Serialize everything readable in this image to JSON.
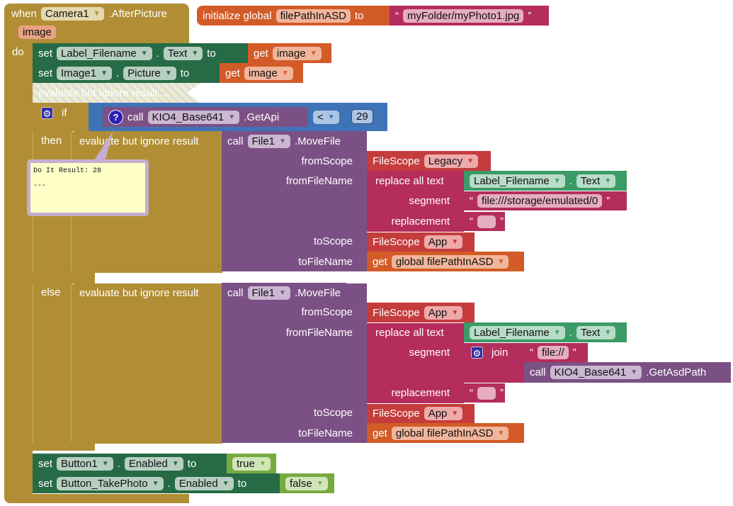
{
  "event": {
    "when": "when",
    "component": "Camera1",
    "event": ".AfterPicture",
    "param": "image",
    "do": "do"
  },
  "global": {
    "init": "initialize global",
    "name": "filePathInASD",
    "to": "to",
    "value": "myFolder/myPhoto1.jpg",
    "open_quote": "“",
    "close_quote": "”"
  },
  "set1": {
    "set": "set",
    "component": "Label_Filename",
    "dot": ".",
    "prop": "Text",
    "to": "to",
    "get": "get",
    "var": "image"
  },
  "set2": {
    "set": "set",
    "component": "Image1",
    "dot": ".",
    "prop": "Picture",
    "to": "to",
    "get": "get",
    "var": "image"
  },
  "disabled": {
    "label": "evaluate but ignore result ..."
  },
  "if": {
    "if": "if",
    "then": "then",
    "else": "else",
    "call": "call",
    "component": "KIO4_Base641",
    "method": ".GetApi",
    "op": "<",
    "number": "29"
  },
  "tooltip": {
    "line1": "Do It Result: 28",
    "line2": "---"
  },
  "then_branch": {
    "evaluate": "evaluate but ignore result",
    "call": "call",
    "component": "File1",
    "method": ".MoveFile",
    "fromScope": "fromScope",
    "fromFileName": "fromFileName",
    "toScope": "toScope",
    "toFileName": "toFileName",
    "filescope": "FileScope",
    "from_scope_value": "Legacy",
    "replace": "replace all text",
    "segment": "segment",
    "replacement": "replacement",
    "label_comp": "Label_Filename",
    "dot": ".",
    "label_prop": "Text",
    "segment_value": "file:///storage/emulated/0",
    "to_scope_value": "App",
    "get": "get",
    "global_var": "global filePathInASD"
  },
  "else_branch": {
    "evaluate": "evaluate but ignore result",
    "call": "call",
    "component": "File1",
    "method": ".MoveFile",
    "fromScope": "fromScope",
    "fromFileName": "fromFileName",
    "toScope": "toScope",
    "toFileName": "toFileName",
    "filescope": "FileScope",
    "from_scope_value": "App",
    "replace": "replace all text",
    "segment": "segment",
    "replacement": "replacement",
    "label_comp": "Label_Filename",
    "dot": ".",
    "label_prop": "Text",
    "join": "join",
    "join_text": "file://",
    "call2": "call",
    "component2": "KIO4_Base641",
    "method2": ".GetAsdPath",
    "to_scope_value": "App",
    "get": "get",
    "global_var": "global filePathInASD"
  },
  "set3": {
    "set": "set",
    "component": "Button1",
    "dot": ".",
    "prop": "Enabled",
    "to": "to",
    "value": "true"
  },
  "set4": {
    "set": "set",
    "component": "Button_TakePhoto",
    "dot": ".",
    "prop": "Enabled",
    "to": "to",
    "value": "false"
  }
}
